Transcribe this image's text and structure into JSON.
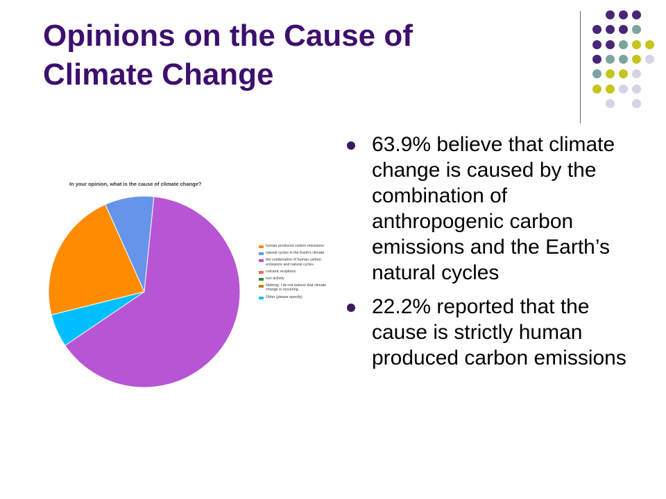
{
  "slide": {
    "title_line1": "Opinions on the Cause of",
    "title_line2": "Climate Change",
    "bullets": [
      "63.9% believe that climate change is caused by the combination of anthropogenic carbon emissions and the Earth’s natural cycles",
      "22.2% reported that the cause is strictly human produced carbon emissions"
    ],
    "bullet_color": "#3b1a5e",
    "title_color": "#3d0f6e"
  },
  "decor": {
    "colors": {
      "purple": "#4a2576",
      "teal": "#7ea3a0",
      "olive": "#c5c51c",
      "lavender": "#d6d3e6"
    }
  },
  "chart_data": {
    "type": "pie",
    "title": "In your opinion, what is the cause of climate change?",
    "legend_position": "right",
    "slices": [
      {
        "label": "human produced carbon emissions",
        "value": 22.2,
        "color": "#ff8c00"
      },
      {
        "label": "natural cycles in the Earth's climate",
        "value": 8.3,
        "color": "#6694ea"
      },
      {
        "label": "the combination of human carbon emissions and natural cycles",
        "value": 63.9,
        "color": "#b755d5"
      },
      {
        "label": "volcanic eruptions",
        "value": 0,
        "color": "#ee6a5d"
      },
      {
        "label": "sun activity",
        "value": 0,
        "color": "#2e8b3a"
      },
      {
        "label": "Nothing. I do not believe that climate change is occurring",
        "value": 0,
        "color": "#b8860b"
      },
      {
        "label": "Other (please specify)",
        "value": 5.6,
        "color": "#00bfff"
      }
    ],
    "start_angle_deg": 166,
    "direction": "clockwise"
  }
}
